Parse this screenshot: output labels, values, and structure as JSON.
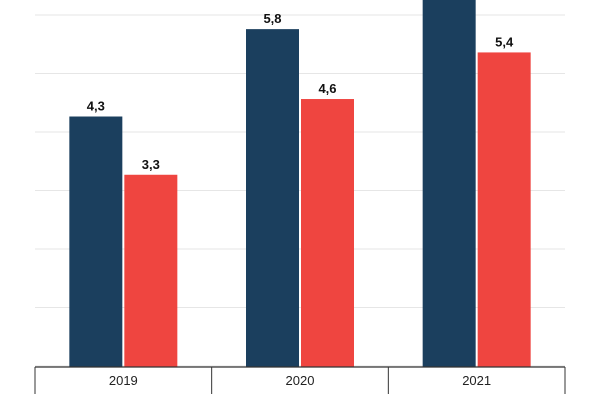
{
  "chart_data": {
    "type": "bar",
    "categories": [
      "2019",
      "2020",
      "2021"
    ],
    "series": [
      {
        "color": "#1b3f5e",
        "values": [
          4.3,
          5.8,
          6.5
        ],
        "labels": [
          "4,3",
          "5,8",
          ""
        ]
      },
      {
        "color": "#ef4540",
        "values": [
          3.3,
          4.6,
          5.4
        ],
        "labels": [
          "3,3",
          "4,6",
          "5,4"
        ]
      }
    ],
    "ylim": [
      0,
      6.3
    ],
    "grid": true
  }
}
